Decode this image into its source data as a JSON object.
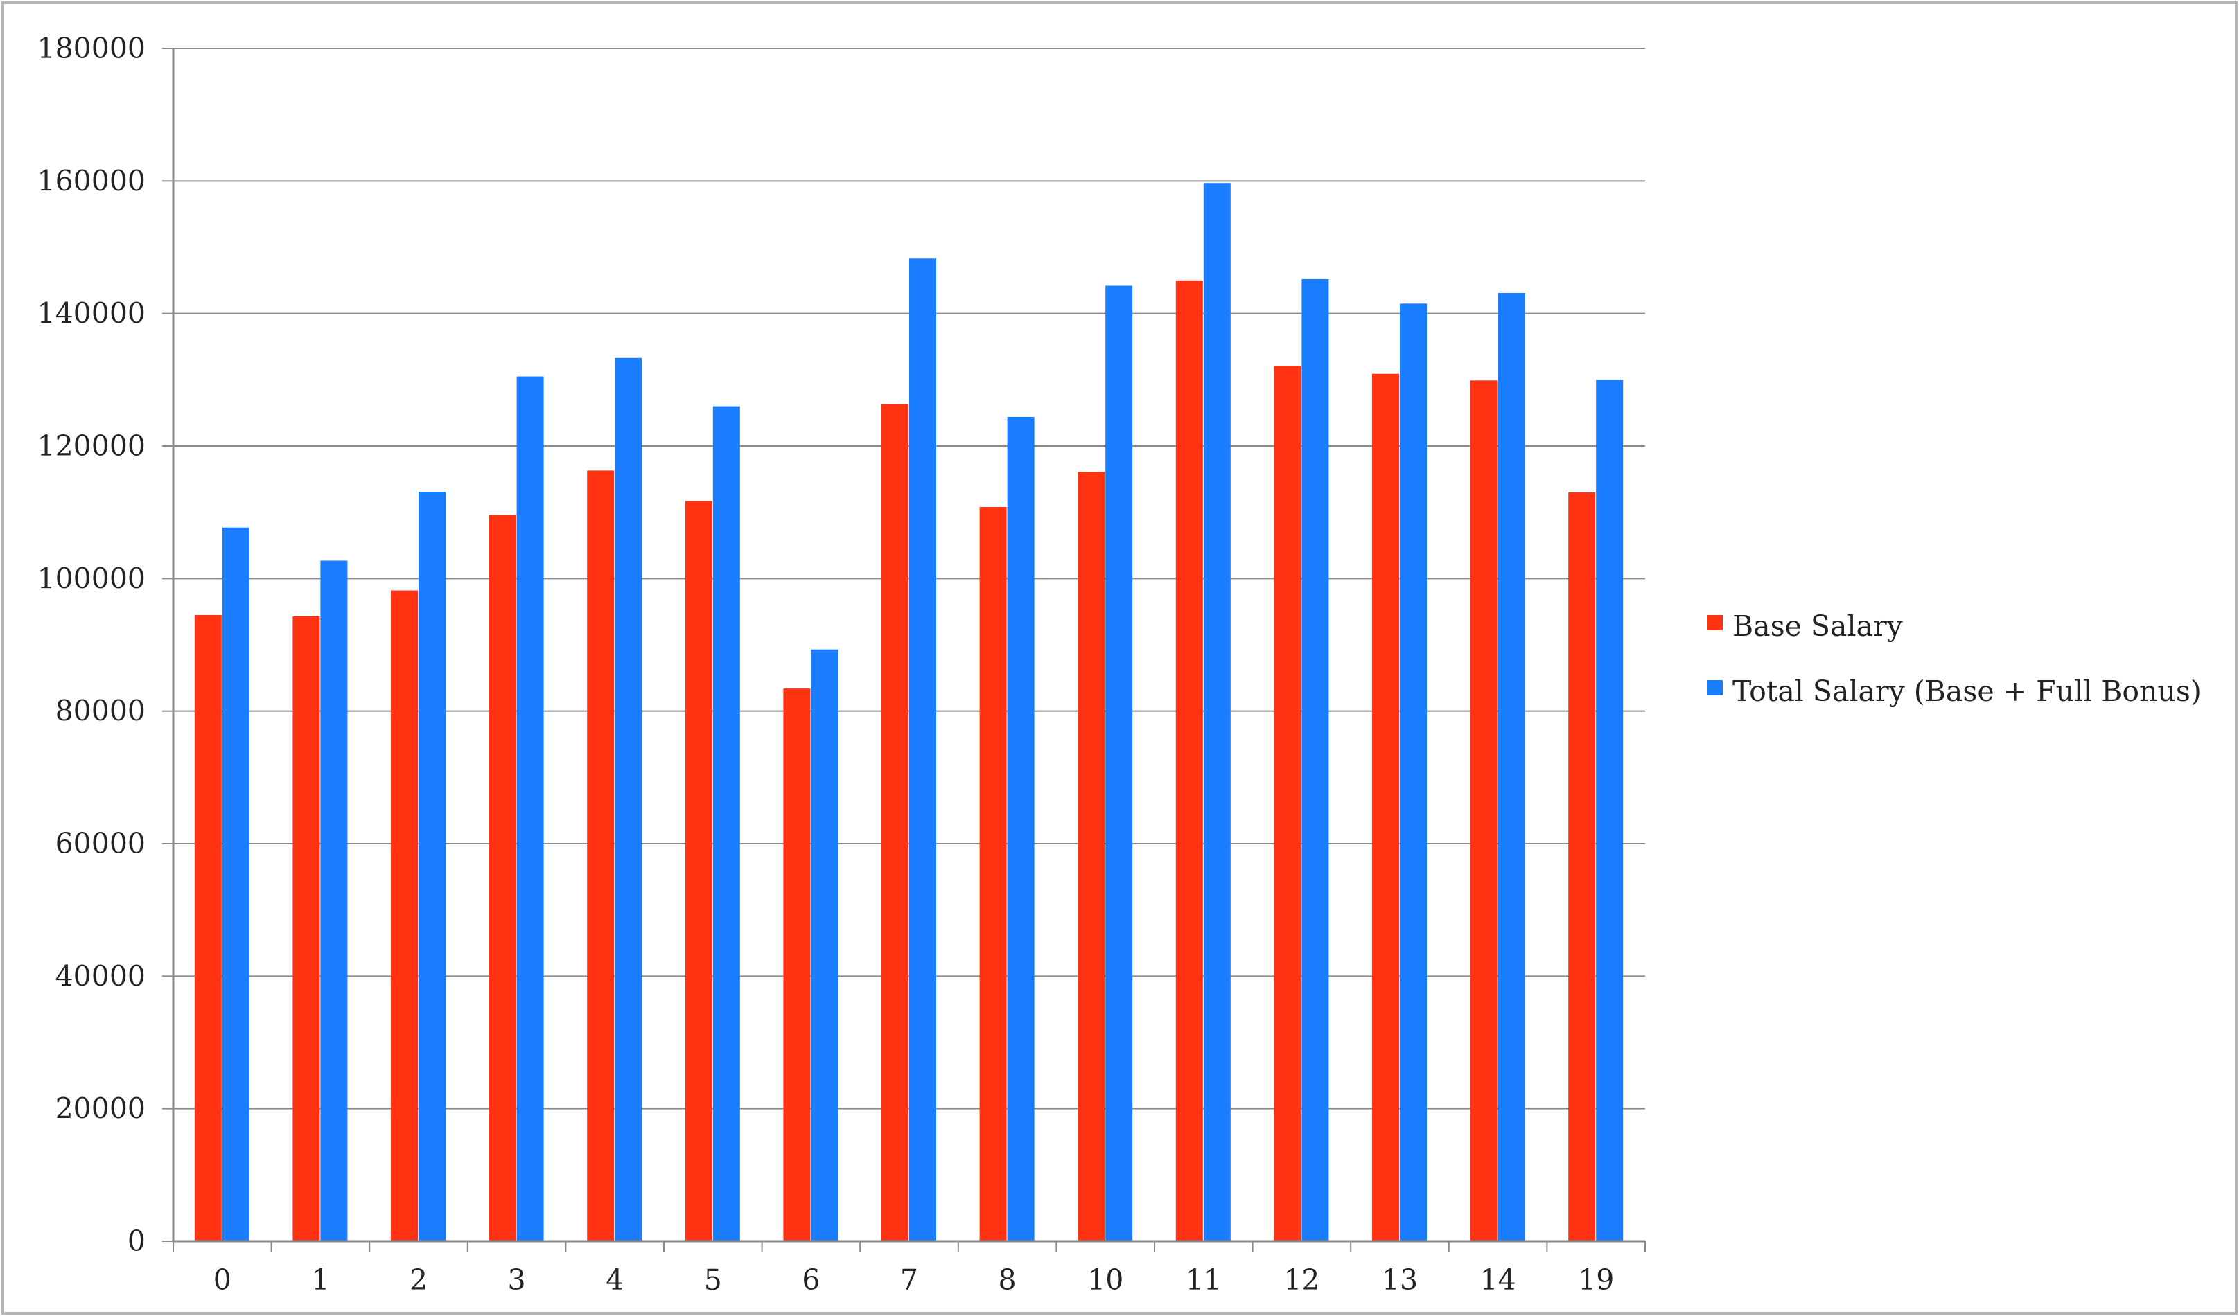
{
  "chart_data": {
    "type": "bar",
    "categories": [
      "0",
      "1",
      "2",
      "3",
      "4",
      "5",
      "6",
      "7",
      "8",
      "10",
      "11",
      "12",
      "13",
      "14",
      "19"
    ],
    "series": [
      {
        "name": "Base Salary",
        "color": "#ff3311",
        "values": [
          94500,
          94300,
          98200,
          109600,
          116300,
          111700,
          83400,
          126300,
          110800,
          116100,
          145000,
          132100,
          130900,
          129900,
          113000
        ]
      },
      {
        "name": "Total Salary (Base + Full Bonus)",
        "color": "#1a7dff",
        "values": [
          107700,
          102700,
          113100,
          130500,
          133300,
          126000,
          89300,
          148300,
          124400,
          144200,
          159700,
          145200,
          141500,
          143100,
          130000
        ]
      }
    ],
    "ylim": [
      0,
      180000
    ],
    "yticks": [
      0,
      20000,
      40000,
      60000,
      80000,
      100000,
      120000,
      140000,
      160000,
      180000
    ],
    "grid": true,
    "legend": "right",
    "title": "",
    "xlabel": "",
    "ylabel": ""
  }
}
